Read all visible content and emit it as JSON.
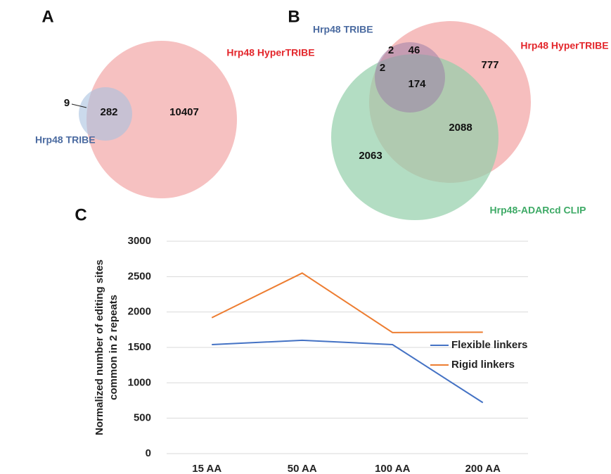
{
  "chart_data": [
    {
      "type": "venn",
      "panel": "A",
      "sets": [
        {
          "name": "Hrp48 TRIBE",
          "color": "#4a6aa0",
          "fill": "#a9c1e0"
        },
        {
          "name": "Hrp48 HyperTRIBE",
          "color": "#e3262b",
          "fill": "#f6bebe"
        }
      ],
      "values": [
        9,
        282,
        10407
      ]
    },
    {
      "type": "venn",
      "panel": "B",
      "sets": [
        {
          "name": "Hrp48 TRIBE",
          "color": "#4a6aa0",
          "fill": "#9c7fa8"
        },
        {
          "name": "Hrp48 HyperTRIBE",
          "color": "#e3262b",
          "fill": "#f4b3b3"
        },
        {
          "name": "Hrp48-ADARcd CLIP",
          "color": "#3eaa66",
          "fill": "#93cfaa"
        }
      ],
      "values": [
        2,
        46,
        2,
        174,
        777,
        2088,
        2063
      ]
    },
    {
      "type": "line",
      "panel": "C",
      "ylabel": [
        "Normalized number of editing sites",
        "common in 2 repeats"
      ],
      "categories": [
        "15 AA",
        "50 AA",
        "100 AA",
        "200 AA"
      ],
      "series": [
        {
          "name": "Flexible linkers",
          "color": "#4472c4",
          "values": [
            1540,
            1600,
            1540,
            720
          ]
        },
        {
          "name": "Rigid linkers",
          "color": "#ed7d31",
          "values": [
            1920,
            2550,
            1710,
            1715
          ]
        }
      ],
      "ylim": [
        0,
        3000
      ],
      "yticks": [
        0,
        500,
        1000,
        1500,
        2000,
        2500,
        3000
      ],
      "grid": true
    }
  ]
}
